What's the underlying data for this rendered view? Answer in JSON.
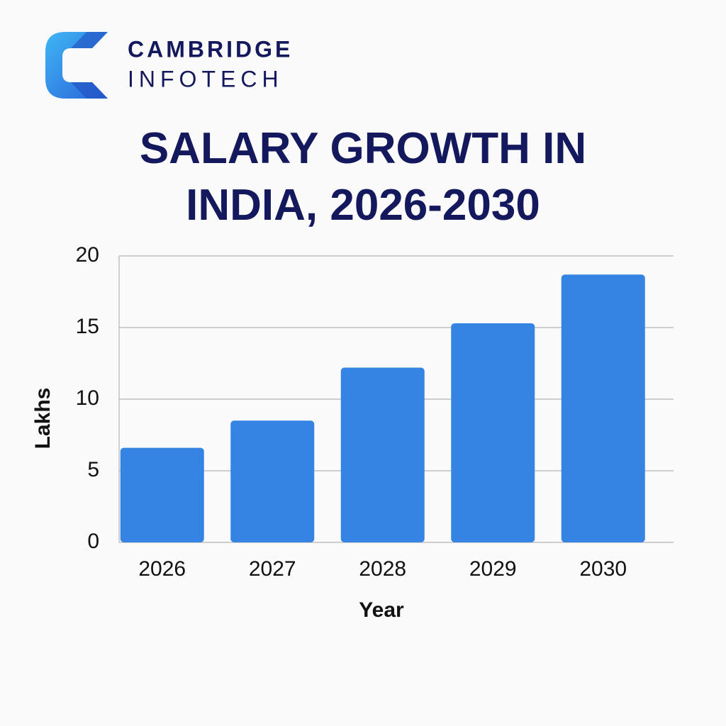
{
  "logo": {
    "name": "CAMBRIDGE",
    "subname": "INFOTECH"
  },
  "chart_data": {
    "type": "bar",
    "title": "SALARY GROWTH IN INDIA, 2026-2030",
    "x_label": "Year",
    "y_label": "Lakhs",
    "categories": [
      "2026",
      "2027",
      "2028",
      "2029",
      "2030"
    ],
    "values": [
      6.6,
      8.5,
      12.2,
      15.3,
      18.7
    ],
    "color": "#3584e4",
    "ylim": [
      0,
      20
    ],
    "yticks": [
      0,
      5,
      10,
      15,
      20
    ],
    "grid": true
  }
}
